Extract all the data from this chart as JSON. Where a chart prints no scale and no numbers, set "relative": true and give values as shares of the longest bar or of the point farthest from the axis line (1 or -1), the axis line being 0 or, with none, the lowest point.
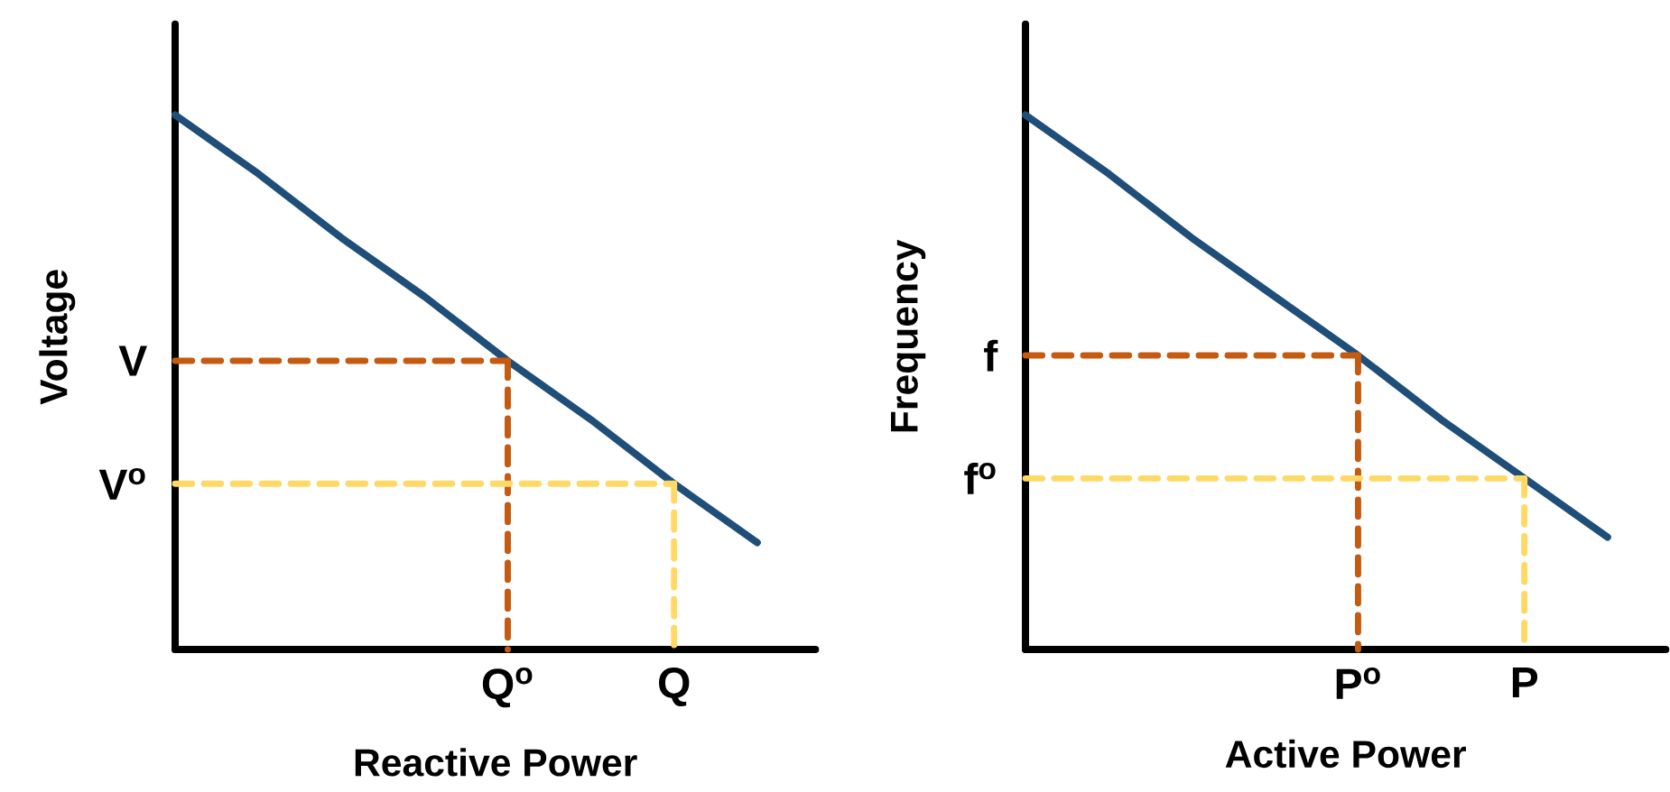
{
  "chart_data": [
    {
      "type": "line",
      "relative": true,
      "xlabel": "Reactive Power",
      "ylabel": "Voltage",
      "categories": [
        null,
        null,
        null,
        null,
        "Q$^{o}$",
        null,
        "Q",
        null
      ],
      "series": [
        {
          "values": [
            1.0,
            0.89,
            0.77,
            0.66,
            0.54,
            0.43,
            0.31,
            0.2
          ],
          "color": "#1f4e79",
          "line_style": "solid"
        },
        {
          "values": [
            0.54,
            0.54,
            0.54,
            0.54,
            0.54,
            null,
            null,
            null
          ],
          "color": "#c55a11",
          "line_style": "dashed"
        },
        {
          "x": [
            "Q$^{o}$",
            "Q$^{o}$"
          ],
          "values": [
            0.54,
            0
          ],
          "color": "#c55a11",
          "line_style": "dashed"
        },
        {
          "values": [
            0.31,
            0.31,
            0.31,
            0.31,
            0.31,
            0.31,
            0.31,
            null
          ],
          "color": "#ffd966",
          "line_style": "dashed"
        },
        {
          "x": [
            "Q",
            "Q"
          ],
          "values": [
            0.31,
            0
          ],
          "color": "#ffd966",
          "line_style": "dashed"
        }
      ],
      "annotations": [
        "V",
        "V$^{o}$"
      ]
    },
    {
      "type": "line",
      "relative": true,
      "xlabel": "Active Power",
      "ylabel": "Frequency",
      "categories": [
        null,
        null,
        null,
        null,
        "P$^{o}$",
        null,
        "P",
        null
      ],
      "series": [
        {
          "values": [
            1.0,
            0.89,
            0.77,
            0.66,
            0.55,
            0.43,
            0.32,
            0.21
          ],
          "color": "#1f4e79",
          "line_style": "solid"
        },
        {
          "values": [
            0.55,
            0.55,
            0.55,
            0.55,
            0.55,
            null,
            null,
            null
          ],
          "color": "#c55a11",
          "line_style": "dashed"
        },
        {
          "x": [
            "P$^{o}$",
            "P$^{o}$"
          ],
          "values": [
            0.55,
            0
          ],
          "color": "#c55a11",
          "line_style": "dashed"
        },
        {
          "values": [
            0.32,
            0.32,
            0.32,
            0.32,
            0.32,
            0.32,
            0.32,
            null
          ],
          "color": "#ffd966",
          "line_style": "dashed"
        },
        {
          "x": [
            "P",
            "P"
          ],
          "values": [
            0.32,
            0
          ],
          "color": "#ffd966",
          "line_style": "dashed"
        }
      ],
      "annotations": [
        "f",
        "f$^{o}$"
      ]
    }
  ]
}
